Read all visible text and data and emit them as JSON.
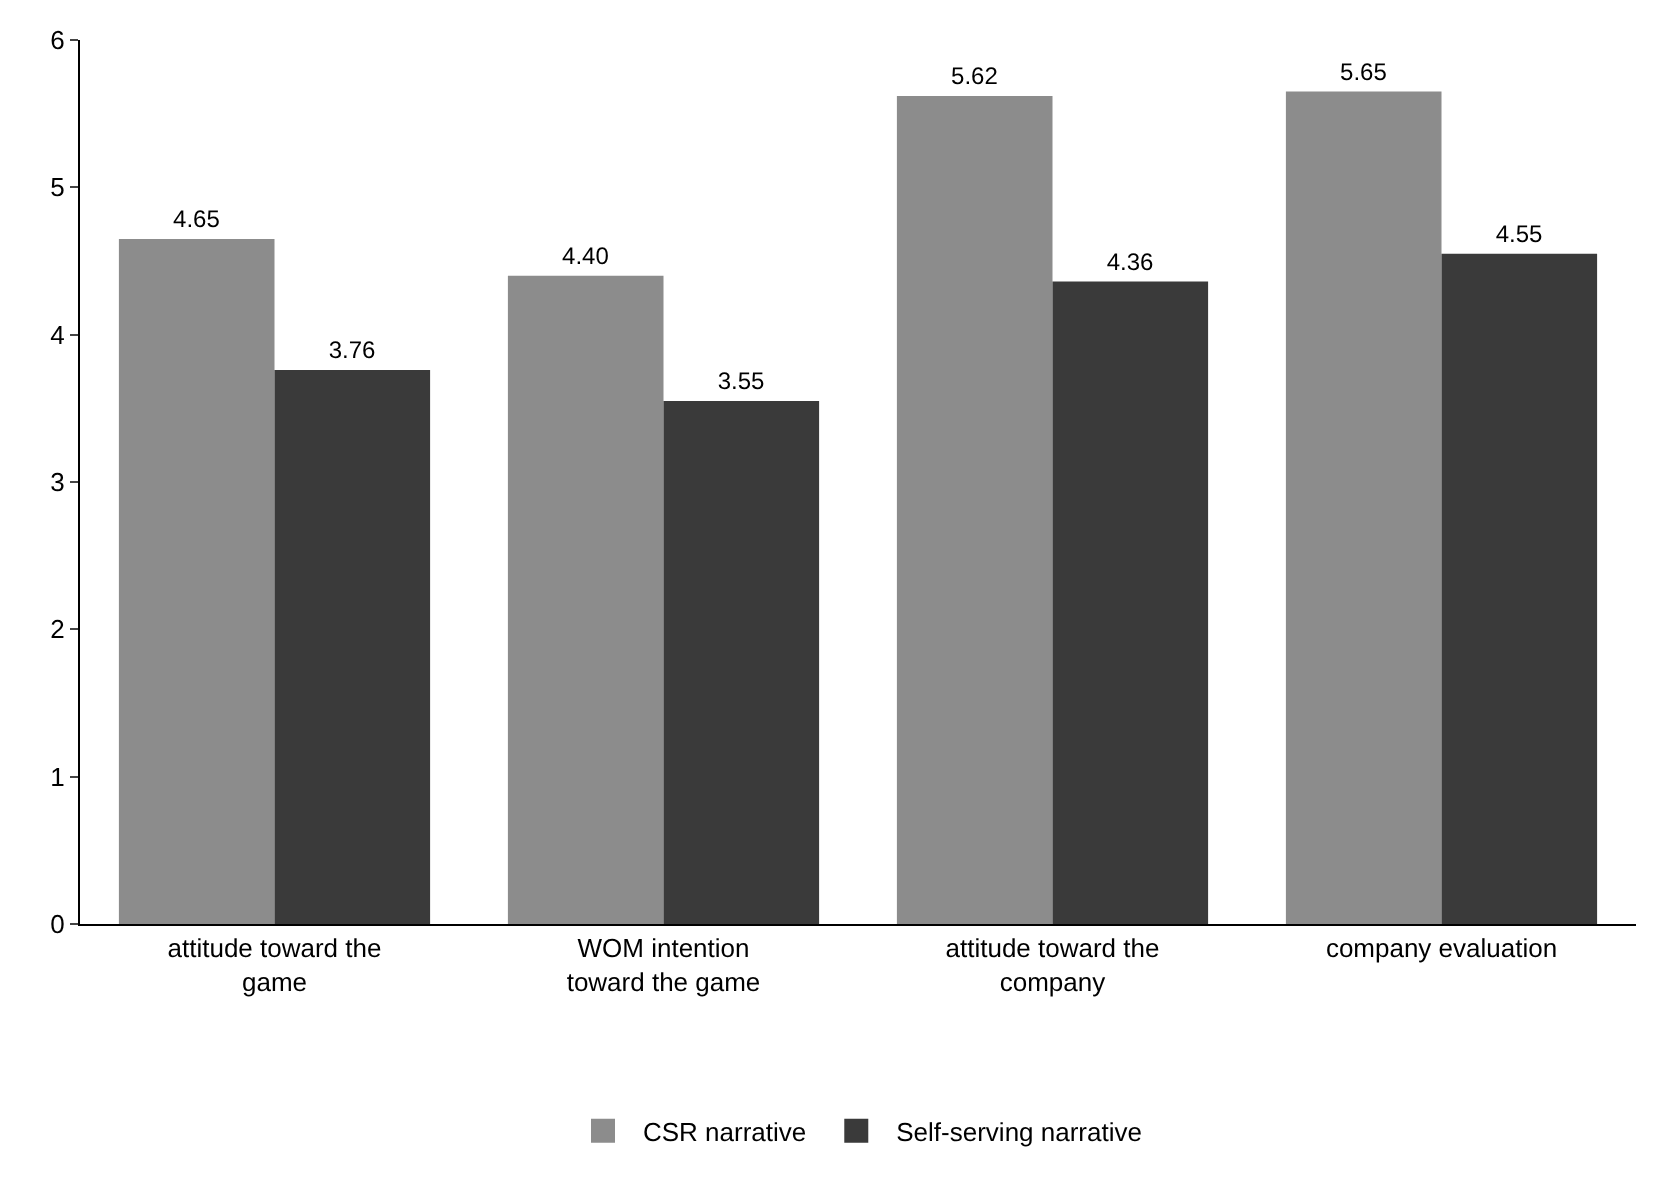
{
  "chart_data": {
    "type": "bar",
    "categories": [
      "attitude toward the game",
      "WOM intention toward the game",
      "attitude toward the company",
      "company evaluation"
    ],
    "series": [
      {
        "name": "CSR narrative",
        "color": "#8c8c8c",
        "values": [
          4.65,
          4.4,
          5.62,
          5.65
        ],
        "value_labels": [
          "4.65",
          "4.40",
          "5.62",
          "5.65"
        ]
      },
      {
        "name": "Self-serving narrative",
        "color": "#3a3a3a",
        "values": [
          3.76,
          3.55,
          4.36,
          4.55
        ],
        "value_labels": [
          "3.76",
          "3.55",
          "4.36",
          "4.55"
        ]
      }
    ],
    "ylim": [
      0,
      6
    ],
    "yticks": [
      0,
      1,
      2,
      3,
      4,
      5,
      6
    ],
    "legend": "bottom"
  }
}
